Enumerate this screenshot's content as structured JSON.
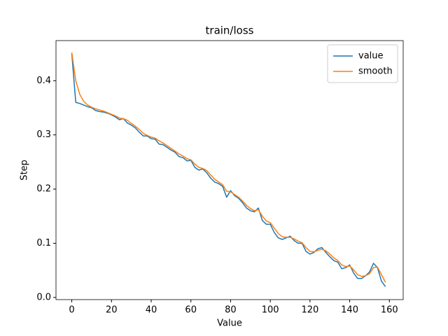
{
  "chart_data": {
    "type": "line",
    "title": "train/loss",
    "xlabel": "Value",
    "ylabel": "Step",
    "x": [
      0,
      2,
      4,
      6,
      8,
      10,
      12,
      14,
      16,
      18,
      20,
      22,
      24,
      26,
      28,
      30,
      32,
      34,
      36,
      38,
      40,
      42,
      44,
      46,
      48,
      50,
      52,
      54,
      56,
      58,
      60,
      62,
      64,
      66,
      68,
      70,
      72,
      74,
      76,
      78,
      80,
      82,
      84,
      86,
      88,
      90,
      92,
      94,
      96,
      98,
      100,
      102,
      104,
      106,
      108,
      110,
      112,
      114,
      116,
      118,
      120,
      122,
      124,
      126,
      128,
      130,
      132,
      134,
      136,
      138,
      140,
      142,
      144,
      146,
      148,
      150,
      152,
      154,
      156,
      158
    ],
    "series": [
      {
        "name": "value",
        "color": "#1f77b4",
        "values": [
          0.45,
          0.36,
          0.358,
          0.355,
          0.352,
          0.35,
          0.345,
          0.343,
          0.342,
          0.34,
          0.337,
          0.333,
          0.328,
          0.33,
          0.322,
          0.318,
          0.313,
          0.305,
          0.298,
          0.298,
          0.293,
          0.292,
          0.283,
          0.282,
          0.277,
          0.272,
          0.268,
          0.26,
          0.258,
          0.252,
          0.253,
          0.24,
          0.235,
          0.237,
          0.23,
          0.22,
          0.213,
          0.21,
          0.205,
          0.185,
          0.197,
          0.188,
          0.183,
          0.175,
          0.165,
          0.16,
          0.158,
          0.165,
          0.142,
          0.135,
          0.135,
          0.12,
          0.11,
          0.107,
          0.11,
          0.113,
          0.105,
          0.1,
          0.1,
          0.085,
          0.08,
          0.083,
          0.09,
          0.092,
          0.083,
          0.075,
          0.068,
          0.065,
          0.053,
          0.055,
          0.06,
          0.045,
          0.035,
          0.035,
          0.04,
          0.047,
          0.063,
          0.055,
          0.03,
          0.02
        ]
      },
      {
        "name": "smooth",
        "color": "#ff7f0e",
        "values": [
          0.452,
          0.4,
          0.375,
          0.362,
          0.355,
          0.351,
          0.348,
          0.346,
          0.344,
          0.341,
          0.338,
          0.335,
          0.331,
          0.33,
          0.327,
          0.321,
          0.316,
          0.31,
          0.303,
          0.299,
          0.296,
          0.294,
          0.289,
          0.285,
          0.28,
          0.275,
          0.27,
          0.265,
          0.261,
          0.256,
          0.254,
          0.246,
          0.24,
          0.238,
          0.234,
          0.226,
          0.218,
          0.213,
          0.208,
          0.196,
          0.195,
          0.19,
          0.185,
          0.178,
          0.17,
          0.164,
          0.16,
          0.162,
          0.15,
          0.141,
          0.138,
          0.128,
          0.118,
          0.112,
          0.111,
          0.111,
          0.108,
          0.104,
          0.101,
          0.092,
          0.085,
          0.084,
          0.087,
          0.089,
          0.086,
          0.08,
          0.073,
          0.068,
          0.06,
          0.057,
          0.058,
          0.051,
          0.042,
          0.039,
          0.04,
          0.044,
          0.055,
          0.056,
          0.042,
          0.028
        ]
      }
    ],
    "xlim": [
      -7.95,
      166.95
    ],
    "xticks": [
      0,
      20,
      40,
      60,
      80,
      100,
      120,
      140,
      160
    ],
    "ylim": [
      -0.004,
      0.474
    ],
    "yticks": [
      {
        "value": 0,
        "label": "0.0"
      },
      0.1,
      0.2,
      0.3,
      0.4
    ],
    "legend": "upper right"
  }
}
